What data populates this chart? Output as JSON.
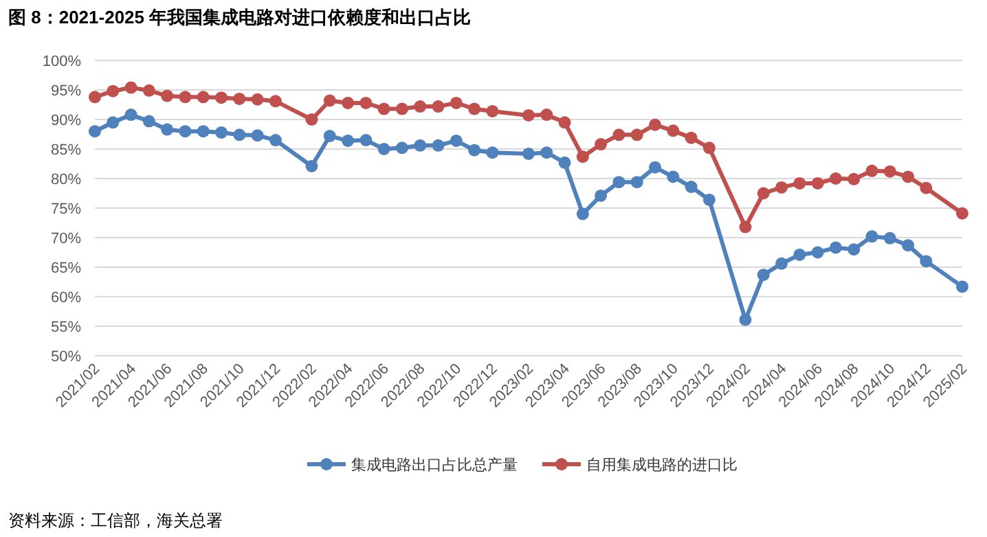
{
  "chart_data": {
    "type": "line",
    "title": "图 8：2021-2025 年我国集成电路对进口依赖度和出口占比",
    "x": [
      "2021-02",
      "2021-03",
      "2021-04",
      "2021-05",
      "2021-06",
      "2021-07",
      "2021-08",
      "2021-09",
      "2021-10",
      "2021-11",
      "2021-12",
      "2022-02",
      "2022-03",
      "2022-04",
      "2022-05",
      "2022-06",
      "2022-07",
      "2022-08",
      "2022-09",
      "2022-10",
      "2022-11",
      "2022-12",
      "2023-02",
      "2023-03",
      "2023-04",
      "2023-05",
      "2023-06",
      "2023-07",
      "2023-08",
      "2023-09",
      "2023-10",
      "2023-11",
      "2023-12",
      "2024-02",
      "2024-03",
      "2024-04",
      "2024-05",
      "2024-06",
      "2024-07",
      "2024-08",
      "2024-09",
      "2024-10",
      "2024-11",
      "2024-12",
      "2025-02"
    ],
    "series": [
      {
        "name": "集成电路出口占比总产量",
        "color": "#4f81bd",
        "values": [
          88.0,
          89.5,
          90.8,
          89.7,
          88.3,
          88.0,
          88.0,
          87.8,
          87.4,
          87.3,
          86.5,
          82.1,
          87.2,
          86.4,
          86.5,
          85.0,
          85.2,
          85.6,
          85.6,
          86.4,
          84.8,
          84.4,
          84.2,
          84.4,
          82.7,
          74.0,
          77.1,
          79.4,
          79.4,
          81.9,
          80.3,
          78.6,
          76.4,
          56.1,
          63.7,
          65.6,
          67.1,
          67.5,
          68.3,
          68.0,
          70.2,
          69.9,
          68.7,
          66.0,
          61.7
        ]
      },
      {
        "name": "自用集成电路的进口比",
        "color": "#c0504d",
        "values": [
          93.8,
          94.8,
          95.4,
          94.9,
          94.0,
          93.8,
          93.8,
          93.7,
          93.5,
          93.4,
          93.1,
          90.0,
          93.2,
          92.8,
          92.8,
          91.8,
          91.8,
          92.2,
          92.2,
          92.8,
          91.8,
          91.4,
          90.7,
          90.8,
          89.5,
          83.7,
          85.8,
          87.4,
          87.4,
          89.1,
          88.1,
          86.9,
          85.2,
          71.8,
          77.5,
          78.5,
          79.2,
          79.2,
          80.0,
          79.9,
          81.3,
          81.2,
          80.3,
          78.4,
          74.1
        ]
      }
    ],
    "xlim": [
      "2021-02",
      "2025-02"
    ],
    "xticks": [
      {
        "value": "2021-02",
        "label": "2021/02"
      },
      {
        "value": "2021-04",
        "label": "2021/04"
      },
      {
        "value": "2021-06",
        "label": "2021/06"
      },
      {
        "value": "2021-08",
        "label": "2021/08"
      },
      {
        "value": "2021-10",
        "label": "2021/10"
      },
      {
        "value": "2021-12",
        "label": "2021/12"
      },
      {
        "value": "2022-02",
        "label": "2022/02"
      },
      {
        "value": "2022-04",
        "label": "2022/04"
      },
      {
        "value": "2022-06",
        "label": "2022/06"
      },
      {
        "value": "2022-08",
        "label": "2022/08"
      },
      {
        "value": "2022-10",
        "label": "2022/10"
      },
      {
        "value": "2022-12",
        "label": "2022/12"
      },
      {
        "value": "2023-02",
        "label": "2023/02"
      },
      {
        "value": "2023-04",
        "label": "2023/04"
      },
      {
        "value": "2023-06",
        "label": "2023/06"
      },
      {
        "value": "2023-08",
        "label": "2023/08"
      },
      {
        "value": "2023-10",
        "label": "2023/10"
      },
      {
        "value": "2023-12",
        "label": "2023/12"
      },
      {
        "value": "2024-02",
        "label": "2024/02"
      },
      {
        "value": "2024-04",
        "label": "2024/04"
      },
      {
        "value": "2024-06",
        "label": "2024/06"
      },
      {
        "value": "2024-08",
        "label": "2024/08"
      },
      {
        "value": "2024-10",
        "label": "2024/10"
      },
      {
        "value": "2024-12",
        "label": "2024/12"
      },
      {
        "value": "2025-02",
        "label": "2025/02"
      }
    ],
    "ylim": [
      50,
      100
    ],
    "yticks": [
      {
        "value": 50,
        "label": "50%"
      },
      {
        "value": 55,
        "label": "55%"
      },
      {
        "value": 60,
        "label": "60%"
      },
      {
        "value": 65,
        "label": "65%"
      },
      {
        "value": 70,
        "label": "70%"
      },
      {
        "value": 75,
        "label": "75%"
      },
      {
        "value": 80,
        "label": "80%"
      },
      {
        "value": 85,
        "label": "85%"
      },
      {
        "value": 90,
        "label": "90%"
      },
      {
        "value": 95,
        "label": "95%"
      },
      {
        "value": 100,
        "label": "100%"
      }
    ],
    "grid": "y",
    "legend": "bottom",
    "marker": "circle",
    "line_style": "solid",
    "annotations": [
      "资料来源：工信部，海关总署"
    ]
  }
}
